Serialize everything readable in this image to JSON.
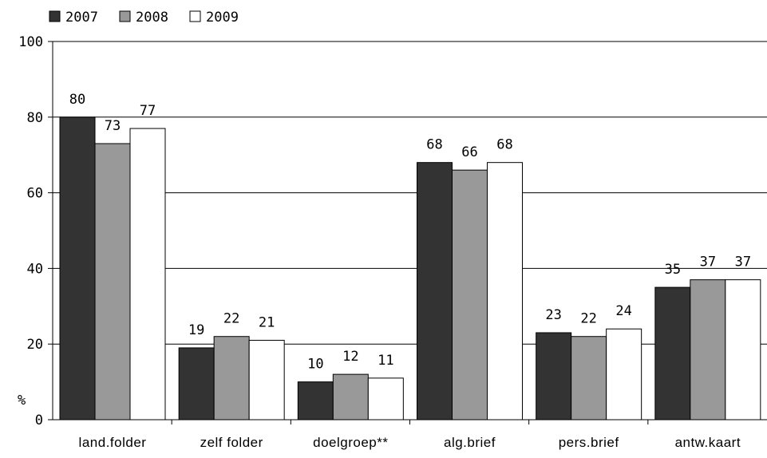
{
  "chart_data": {
    "type": "bar",
    "categories": [
      "land.folder",
      "zelf folder",
      "doelgroep**",
      "alg.brief",
      "pers.brief",
      "antw.kaart"
    ],
    "series": [
      {
        "name": "2007",
        "values": [
          80,
          19,
          10,
          68,
          23,
          35
        ],
        "color": "#333333"
      },
      {
        "name": "2008",
        "values": [
          73,
          22,
          12,
          66,
          22,
          37
        ],
        "color": "#999999"
      },
      {
        "name": "2009",
        "values": [
          77,
          21,
          11,
          68,
          24,
          37
        ],
        "color": "#ffffff"
      }
    ],
    "ylabel": "%",
    "ylim": [
      0,
      100
    ],
    "yticks": [
      0,
      20,
      40,
      60,
      80,
      100
    ],
    "grid": true,
    "legend_position": "top-left"
  }
}
